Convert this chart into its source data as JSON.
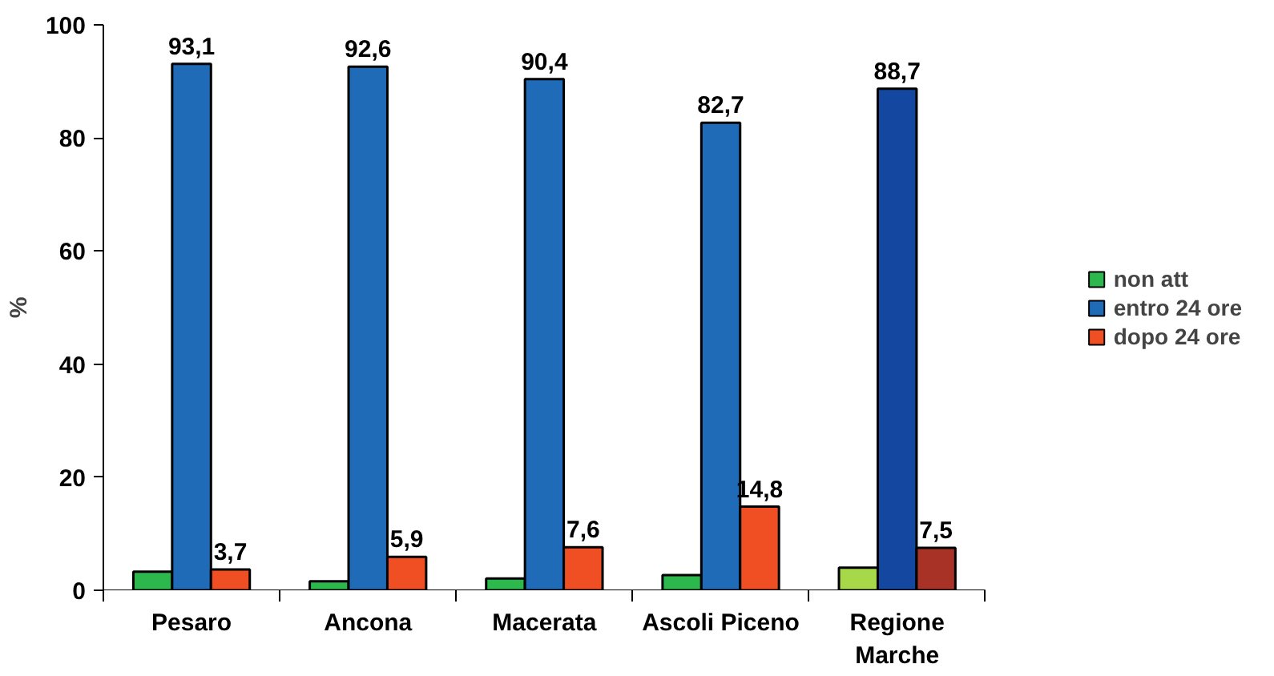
{
  "chart_data": {
    "type": "bar",
    "ylabel": "%",
    "categories": [
      "Pesaro",
      "Ancona",
      "Macerata",
      "Ascoli Piceno",
      "Regione\nMarche"
    ],
    "series": [
      {
        "name": "non att",
        "color": "#2db84d",
        "colors": [
          "#2db84d",
          "#2db84d",
          "#2db84d",
          "#2db84d",
          "#a6d84a"
        ],
        "values": [
          3.3,
          1.6,
          2.1,
          2.7,
          4.0
        ]
      },
      {
        "name": "entro 24 ore",
        "color": "#1f6bb8",
        "colors": [
          "#1f6bb8",
          "#1f6bb8",
          "#1f6bb8",
          "#1f6bb8",
          "#1448a0"
        ],
        "values": [
          93.1,
          92.6,
          90.4,
          82.7,
          88.7
        ],
        "value_labels": [
          "93,1",
          "92,6",
          "90,4",
          "82,7",
          "88,7"
        ]
      },
      {
        "name": "dopo 24 ore",
        "color": "#f04e23",
        "colors": [
          "#f04e23",
          "#f04e23",
          "#f04e23",
          "#f04e23",
          "#a93226"
        ],
        "values": [
          3.7,
          5.9,
          7.6,
          14.8,
          7.5
        ],
        "value_labels": [
          "3,7",
          "5,9",
          "7,6",
          "14,8",
          "7,5"
        ]
      }
    ],
    "ylim": [
      0,
      100
    ],
    "yticks": [
      0,
      20,
      40,
      60,
      80,
      100
    ],
    "grid": false,
    "legend": "right"
  }
}
